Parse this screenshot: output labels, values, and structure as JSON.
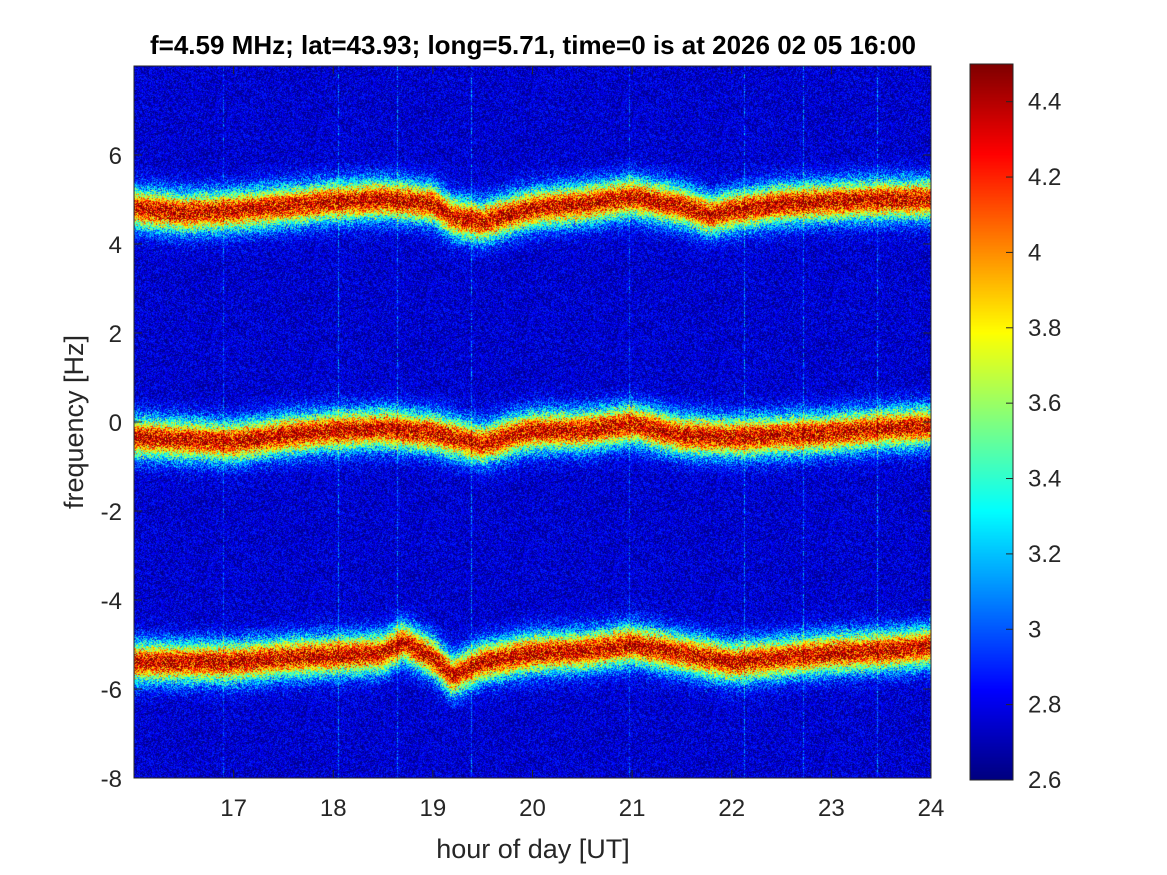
{
  "chart_data": {
    "type": "heatmap",
    "title": "f=4.59 MHz;  lat=43.93; long=5.71, time=0 is at 2026 02 05 16:00",
    "xlabel": "hour of day [UT]",
    "ylabel": "frequency [Hz]",
    "xlim": [
      16,
      24
    ],
    "ylim": [
      -8,
      8
    ],
    "xticks": [
      17,
      18,
      19,
      20,
      21,
      22,
      23,
      24
    ],
    "yticks": [
      -8,
      -6,
      -4,
      -2,
      0,
      2,
      4,
      6
    ],
    "colormap": "jet",
    "clim": [
      2.6,
      4.5
    ],
    "colorbar_ticks": [
      2.6,
      2.8,
      3,
      3.2,
      3.4,
      3.6,
      3.8,
      4,
      4.2,
      4.4
    ],
    "grid": false,
    "background_level": 2.75,
    "traces": [
      {
        "hours": [
          16.0,
          16.5,
          17.0,
          17.5,
          18.0,
          18.5,
          19.0,
          19.2,
          19.5,
          20.0,
          20.5,
          21.0,
          21.5,
          21.8,
          22.0,
          22.5,
          23.0,
          23.5,
          24.0
        ],
        "freq_hz": [
          4.8,
          4.7,
          4.75,
          4.85,
          4.95,
          5.0,
          4.9,
          4.6,
          4.5,
          4.8,
          4.9,
          5.05,
          4.85,
          4.65,
          4.75,
          4.9,
          4.95,
          5.0,
          5.0
        ]
      },
      {
        "hours": [
          16.0,
          16.5,
          17.0,
          17.5,
          18.0,
          18.5,
          19.0,
          19.5,
          19.8,
          20.0,
          20.5,
          21.0,
          21.5,
          22.0,
          22.5,
          23.0,
          23.5,
          24.0
        ],
        "freq_hz": [
          -0.35,
          -0.4,
          -0.45,
          -0.3,
          -0.2,
          -0.15,
          -0.25,
          -0.5,
          -0.3,
          -0.2,
          -0.2,
          -0.05,
          -0.3,
          -0.35,
          -0.3,
          -0.25,
          -0.15,
          -0.1
        ]
      },
      {
        "hours": [
          16.0,
          16.5,
          17.0,
          17.5,
          18.0,
          18.5,
          18.7,
          19.0,
          19.2,
          19.5,
          20.0,
          20.5,
          21.0,
          21.5,
          22.0,
          22.5,
          23.0,
          23.5,
          24.0
        ],
        "freq_hz": [
          -5.4,
          -5.4,
          -5.4,
          -5.3,
          -5.25,
          -5.2,
          -4.95,
          -5.3,
          -5.7,
          -5.4,
          -5.2,
          -5.15,
          -5.0,
          -5.2,
          -5.4,
          -5.3,
          -5.2,
          -5.15,
          -5.05
        ]
      }
    ]
  }
}
